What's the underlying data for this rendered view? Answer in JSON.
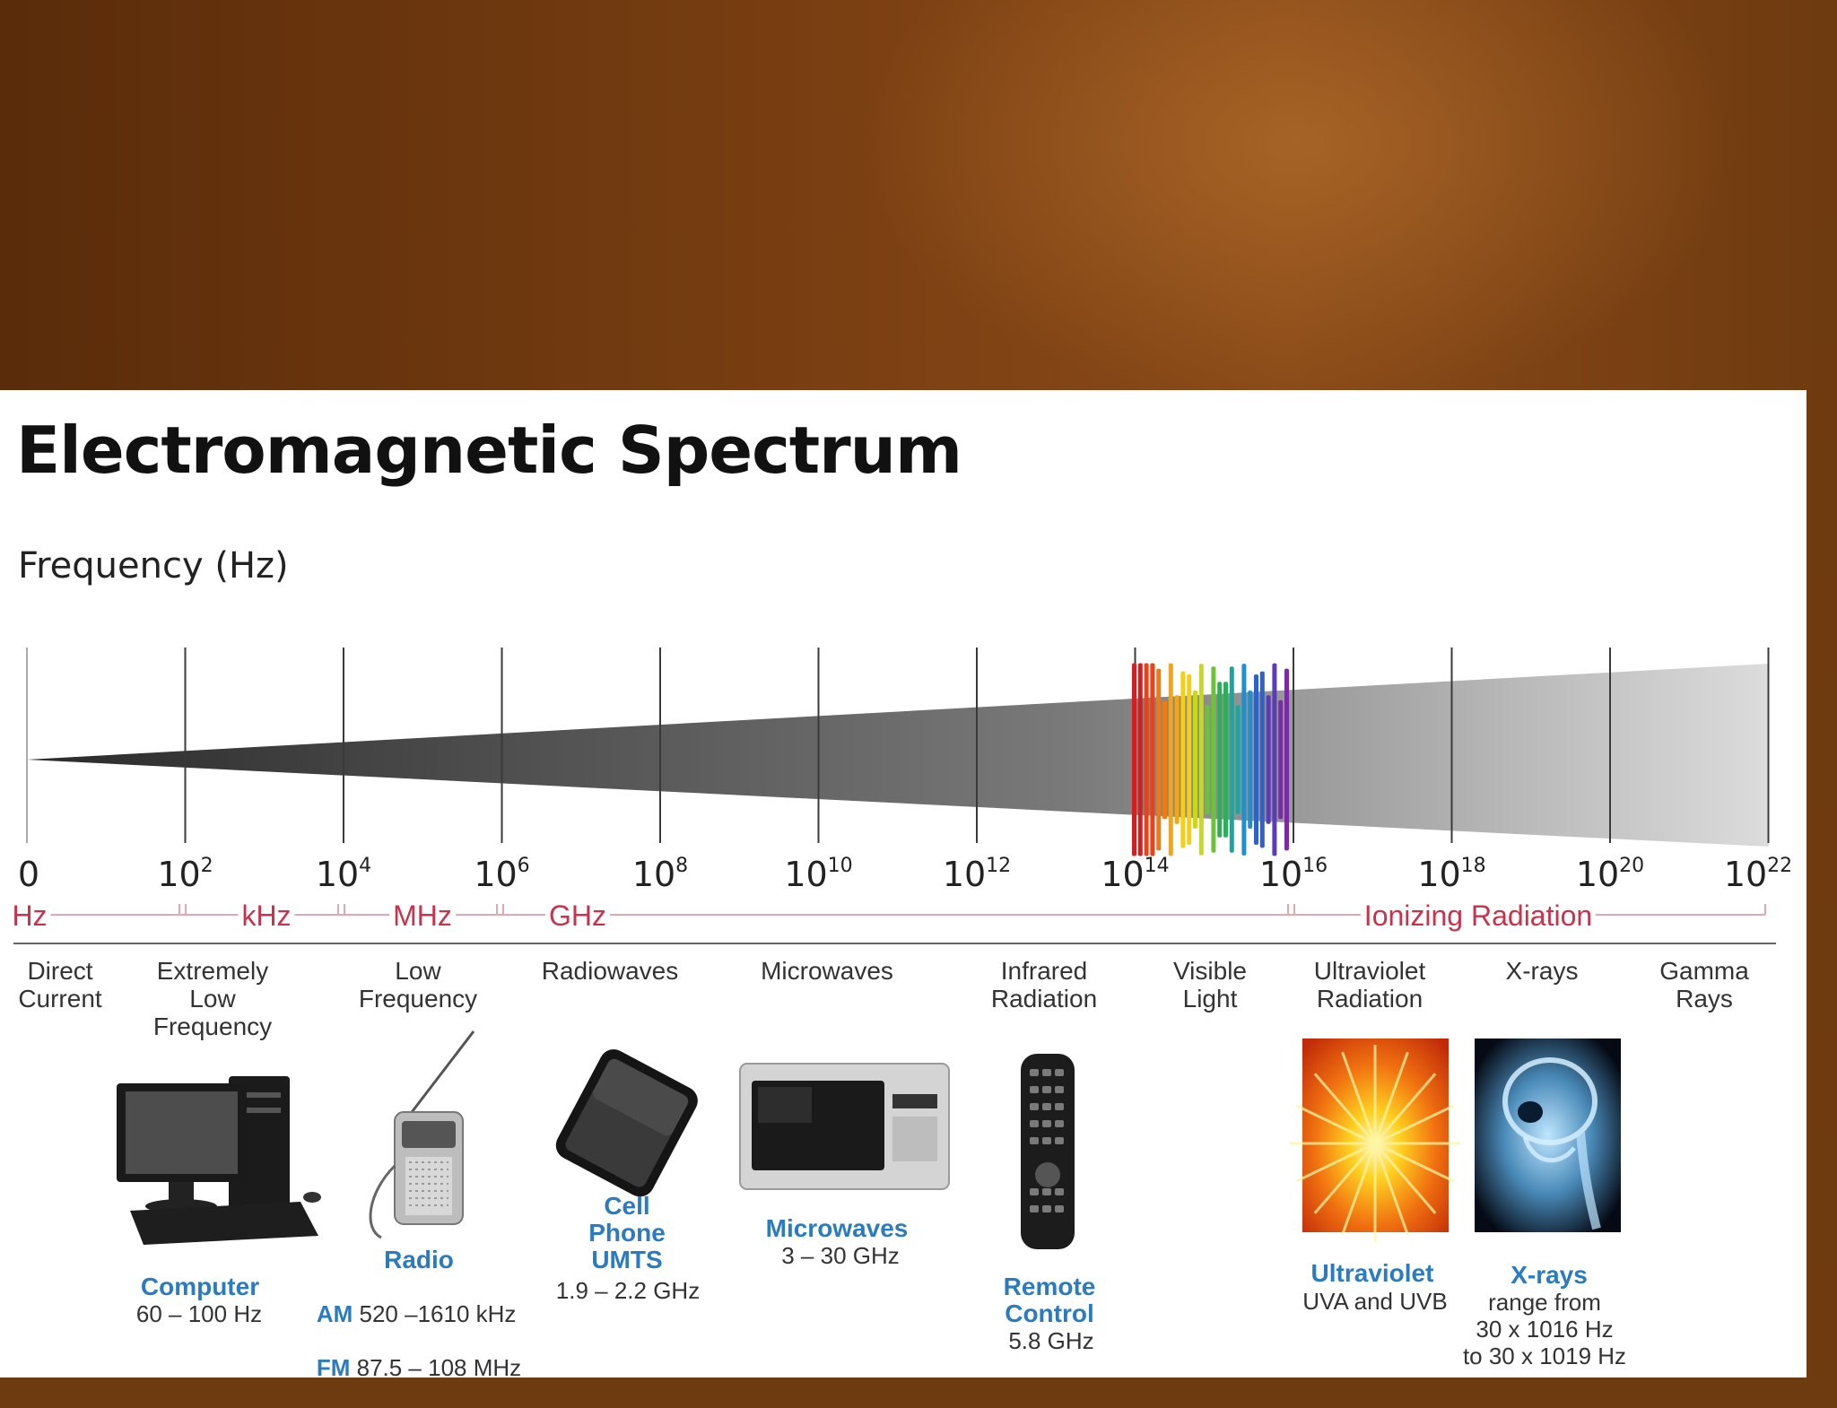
{
  "title": "Electromagnetic Spectrum",
  "frequency_label": "Frequency (Hz)",
  "ticks": [
    {
      "base": "0",
      "exp": ""
    },
    {
      "base": "10",
      "exp": "2"
    },
    {
      "base": "10",
      "exp": "4"
    },
    {
      "base": "10",
      "exp": "6"
    },
    {
      "base": "10",
      "exp": "8"
    },
    {
      "base": "10",
      "exp": "10"
    },
    {
      "base": "10",
      "exp": "12"
    },
    {
      "base": "10",
      "exp": "14"
    },
    {
      "base": "10",
      "exp": "16"
    },
    {
      "base": "10",
      "exp": "18"
    },
    {
      "base": "10",
      "exp": "20"
    },
    {
      "base": "10",
      "exp": "22"
    }
  ],
  "units": {
    "hz": "Hz",
    "khz": "kHz",
    "mhz": "MHz",
    "ghz": "GHz",
    "ionizing": "Ionizing Radiation"
  },
  "bands": [
    "Direct\nCurrent",
    "Extremely\nLow\nFrequency",
    "Low\nFrequency",
    "Radiowaves",
    "Microwaves",
    "Infrared\nRadiation",
    "Visible\nLight",
    "Ultraviolet\nRadiation",
    "X-rays",
    "Gamma\nRays"
  ],
  "devices": {
    "computer": {
      "name": "Computer",
      "detail": "60 – 100 Hz"
    },
    "radio": {
      "name": "Radio",
      "am_label": "AM",
      "am": "520 –1610 kHz",
      "fm_label": "FM",
      "fm": "87.5 – 108 MHz"
    },
    "cell": {
      "name": "Cell\nPhone\nUMTS",
      "detail": "1.9 – 2.2 GHz"
    },
    "microwave": {
      "name": "Microwaves",
      "detail": "3 – 30 GHz"
    },
    "remote": {
      "name": "Remote\nControl",
      "detail": "5.8 GHz"
    },
    "ultraviolet": {
      "name": "Ultraviolet",
      "detail": "UVA and UVB"
    },
    "xray": {
      "name": "X-rays",
      "detail": "range from\n30 x 1016 Hz\nto 30 x 1019 Hz"
    }
  },
  "colors": {
    "unit_red": "#c8324b",
    "device_blue": "#2a7bc0",
    "background_brown": "#6e3a10"
  }
}
